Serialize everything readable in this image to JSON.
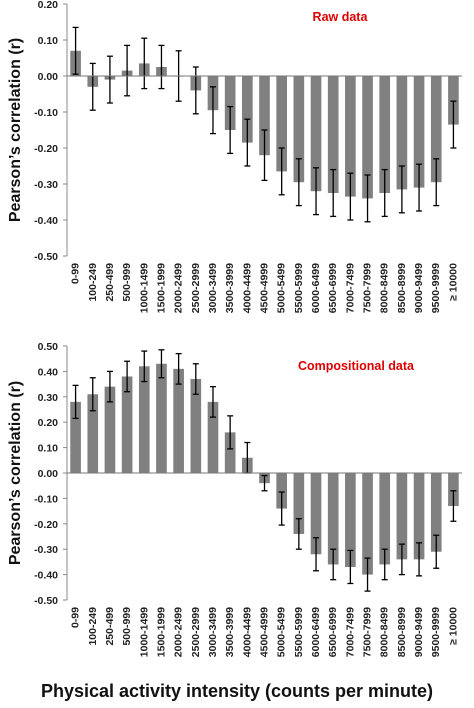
{
  "chart_data": [
    {
      "type": "bar",
      "title": "Raw data",
      "ylabel": "Pearson’s correlation (r)",
      "ylim": [
        -0.5,
        0.2
      ],
      "yticks": [
        "0.20",
        "0.10",
        "0.00",
        "-0.10",
        "-0.20",
        "-0.30",
        "-0.40",
        "-0.50"
      ],
      "categories": [
        "0-99",
        "100-249",
        "250-499",
        "500-999",
        "1000-1499",
        "1500-1999",
        "2000-2499",
        "2500-2999",
        "3000-3499",
        "3500-3999",
        "4000-4499",
        "4500-4999",
        "5000-5499",
        "5500-5999",
        "6000-6499",
        "6500-6999",
        "7000-7499",
        "7500-7999",
        "8000-8499",
        "8500-8999",
        "9000-9499",
        "9500-9999",
        "≥ 10000"
      ],
      "values": [
        0.07,
        -0.03,
        -0.01,
        0.015,
        0.035,
        0.025,
        0.0,
        -0.04,
        -0.095,
        -0.15,
        -0.185,
        -0.22,
        -0.265,
        -0.295,
        -0.32,
        -0.325,
        -0.335,
        -0.34,
        -0.325,
        -0.315,
        -0.31,
        -0.295,
        -0.135
      ],
      "errors": [
        0.065,
        0.065,
        0.065,
        0.07,
        0.07,
        0.06,
        0.07,
        0.065,
        0.065,
        0.065,
        0.065,
        0.07,
        0.065,
        0.065,
        0.065,
        0.065,
        0.065,
        0.065,
        0.065,
        0.065,
        0.065,
        0.065,
        0.065
      ],
      "title_color": "#dd0000",
      "bar_color": "#808080",
      "legend": "none",
      "grid": false
    },
    {
      "type": "bar",
      "title": "Compositional data",
      "ylabel": "Pearson’s correlation (r)",
      "ylim": [
        -0.5,
        0.5
      ],
      "yticks": [
        "0.50",
        "0.40",
        "0.30",
        "0.20",
        "0.10",
        "0.00",
        "-0.10",
        "-0.20",
        "-0.30",
        "-0.40",
        "-0.50"
      ],
      "categories": [
        "0-99",
        "100-249",
        "250-499",
        "500-999",
        "1000-1499",
        "1500-1999",
        "2000-2499",
        "2500-2999",
        "3000-3499",
        "3500-3999",
        "4000-4499",
        "4500-4999",
        "5000-5499",
        "5500-5999",
        "6000-6499",
        "6500-6999",
        "7000-7499",
        "7500-7999",
        "8000-8499",
        "8500-8999",
        "9000-9499",
        "9500-9999",
        "≥ 10000"
      ],
      "values": [
        0.28,
        0.31,
        0.34,
        0.38,
        0.42,
        0.43,
        0.41,
        0.37,
        0.28,
        0.16,
        0.06,
        -0.04,
        -0.14,
        -0.24,
        -0.32,
        -0.36,
        -0.37,
        -0.4,
        -0.36,
        -0.34,
        -0.34,
        -0.31,
        -0.13
      ],
      "errors": [
        0.065,
        0.065,
        0.06,
        0.06,
        0.06,
        0.055,
        0.06,
        0.06,
        0.06,
        0.065,
        0.06,
        0.03,
        0.065,
        0.06,
        0.065,
        0.06,
        0.065,
        0.065,
        0.06,
        0.06,
        0.065,
        0.065,
        0.06
      ],
      "title_color": "#dd0000",
      "bar_color": "#808080",
      "legend": "none",
      "grid": false
    }
  ],
  "xlabel": "Physical activity intensity (counts per minute)"
}
